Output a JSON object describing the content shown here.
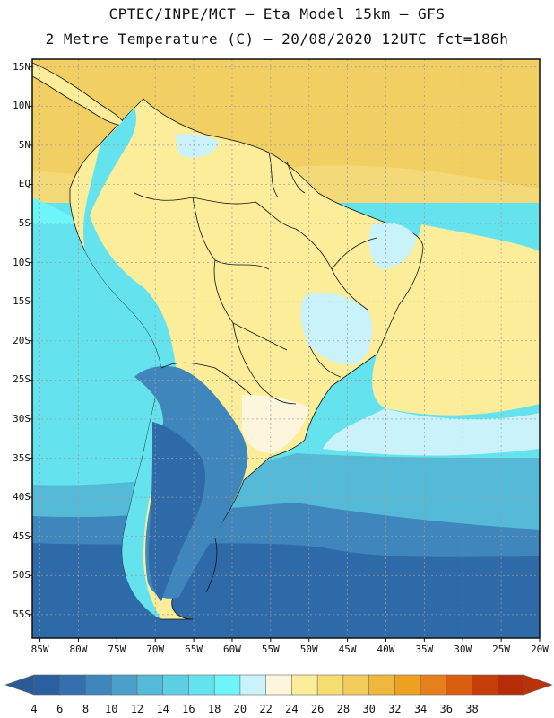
{
  "header": {
    "line1": "CPTEC/INPE/MCT –  Eta Model 15km – GFS",
    "line2": "2 Metre Temperature (C) – 20/08/2020 12UTC fct=186h"
  },
  "map": {
    "region": "South America",
    "lat_labels": [
      "15N",
      "10N",
      "5N",
      "EQ",
      "5S",
      "10S",
      "15S",
      "20S",
      "25S",
      "30S",
      "35S",
      "40S",
      "45S",
      "50S",
      "55S"
    ],
    "lon_labels": [
      "85W",
      "80W",
      "75W",
      "70W",
      "65W",
      "60W",
      "55W",
      "50W",
      "45W",
      "40W",
      "35W",
      "30W",
      "25W",
      "20W"
    ],
    "lat_range": [
      16,
      -58
    ],
    "lon_range": [
      -86,
      -20
    ],
    "gridlines": true
  },
  "colorbar": {
    "labels": [
      "4",
      "6",
      "8",
      "10",
      "12",
      "14",
      "16",
      "18",
      "20",
      "22",
      "24",
      "26",
      "28",
      "30",
      "32",
      "34",
      "36",
      "38"
    ],
    "colors": [
      "#2a5fa0",
      "#356fb0",
      "#3f86bd",
      "#4aa0cb",
      "#55bad8",
      "#5dcfe3",
      "#64e3ee",
      "#6ef5f9",
      "#c9f2fb",
      "#fdf6dc",
      "#fbed9a",
      "#f6dd72",
      "#f2cd5c",
      "#eeb83e",
      "#eca121",
      "#e5801c",
      "#d95e10",
      "#c63e0a",
      "#b52c08"
    ],
    "left_arrow_color": "#2b5a96",
    "right_arrow_color": "#b8320a"
  }
}
